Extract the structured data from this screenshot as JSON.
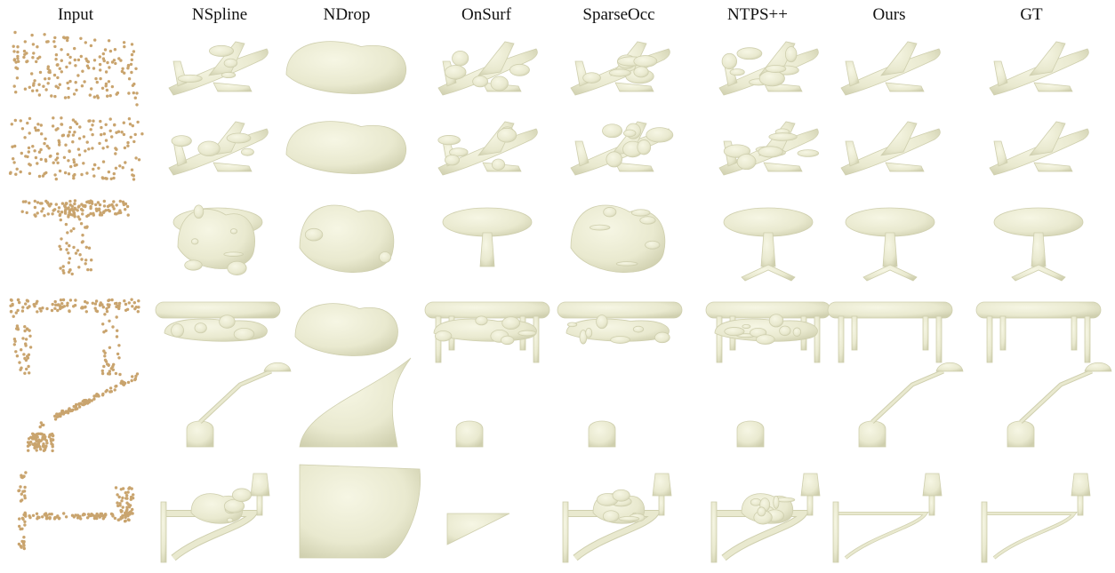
{
  "figure": {
    "columns": [
      {
        "label": "Input"
      },
      {
        "label": "NSpline"
      },
      {
        "label": "NDrop"
      },
      {
        "label": "OnSurf"
      },
      {
        "label": "SparseOcc"
      },
      {
        "label": "NTPS++"
      },
      {
        "label": "Ours"
      },
      {
        "label": "GT"
      }
    ],
    "rows": [
      {
        "object": "airplane-1"
      },
      {
        "object": "airplane-2"
      },
      {
        "object": "round-table"
      },
      {
        "object": "oval-table"
      },
      {
        "object": "desk-lamp"
      },
      {
        "object": "wall-lamp"
      }
    ],
    "colors": {
      "points": "#c9a46e",
      "mesh": "#e9e9cf",
      "mesh_shadow": "#cfcfae",
      "mesh_light": "#f6f6e4"
    }
  }
}
